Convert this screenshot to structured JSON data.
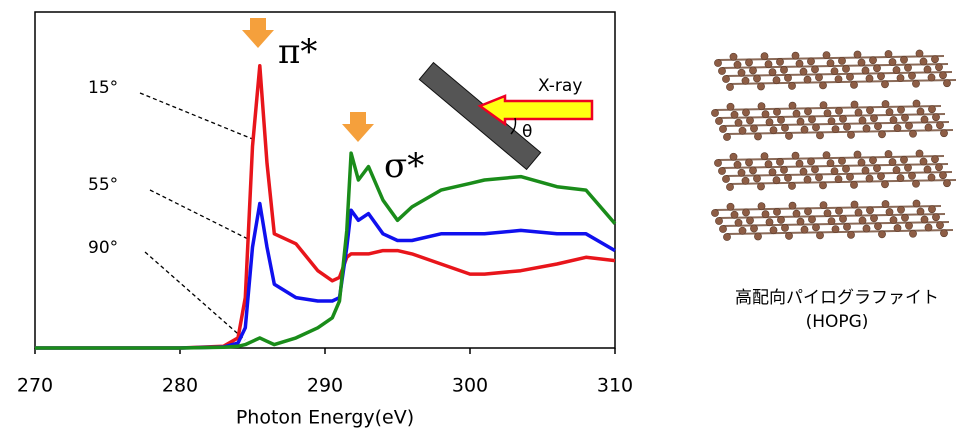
{
  "chart_data": {
    "type": "line",
    "xlabel": "Photon Energy(eV)",
    "x": [
      270,
      280,
      283,
      284,
      284.5,
      285,
      285.5,
      286,
      286.5,
      288,
      289.5,
      290.5,
      291,
      291.5,
      291.8,
      292.3,
      293,
      294,
      295,
      296,
      298,
      300,
      301,
      303.5,
      306,
      308,
      310
    ],
    "series": [
      {
        "name": "15°",
        "color": "#e8151b",
        "values": [
          0,
          0,
          0.5,
          3,
          15,
          60,
          84,
          55,
          34,
          31,
          23,
          20,
          21,
          27,
          28,
          28,
          28,
          29,
          29,
          28,
          25,
          22,
          22,
          23,
          25,
          27,
          26
        ]
      },
      {
        "name": "55°",
        "color": "#1010ee",
        "values": [
          0,
          0,
          0.3,
          1.5,
          6,
          30,
          43,
          30,
          19,
          15,
          14,
          14,
          15,
          30,
          41,
          38,
          40,
          34,
          32,
          32,
          34,
          34,
          34,
          35,
          34,
          34,
          29
        ]
      },
      {
        "name": "90°",
        "color": "#1a8c1a",
        "values": [
          0,
          0,
          0.2,
          0.5,
          1,
          2,
          3,
          2,
          1,
          3,
          6,
          9,
          14,
          35,
          58,
          50,
          54,
          44,
          38,
          42,
          47,
          49,
          50,
          51,
          48,
          47,
          37
        ]
      }
    ],
    "xlim": [
      270,
      310
    ],
    "ylim": [
      0,
      100
    ],
    "xticks": [
      270,
      280,
      290,
      300,
      310
    ],
    "annotations": {
      "pi": "π*",
      "sigma": "σ*",
      "xray": "X-ray",
      "theta": "θ",
      "sample": "高配向パイログラファイト",
      "sample_abbr": "(HOPG)"
    }
  }
}
